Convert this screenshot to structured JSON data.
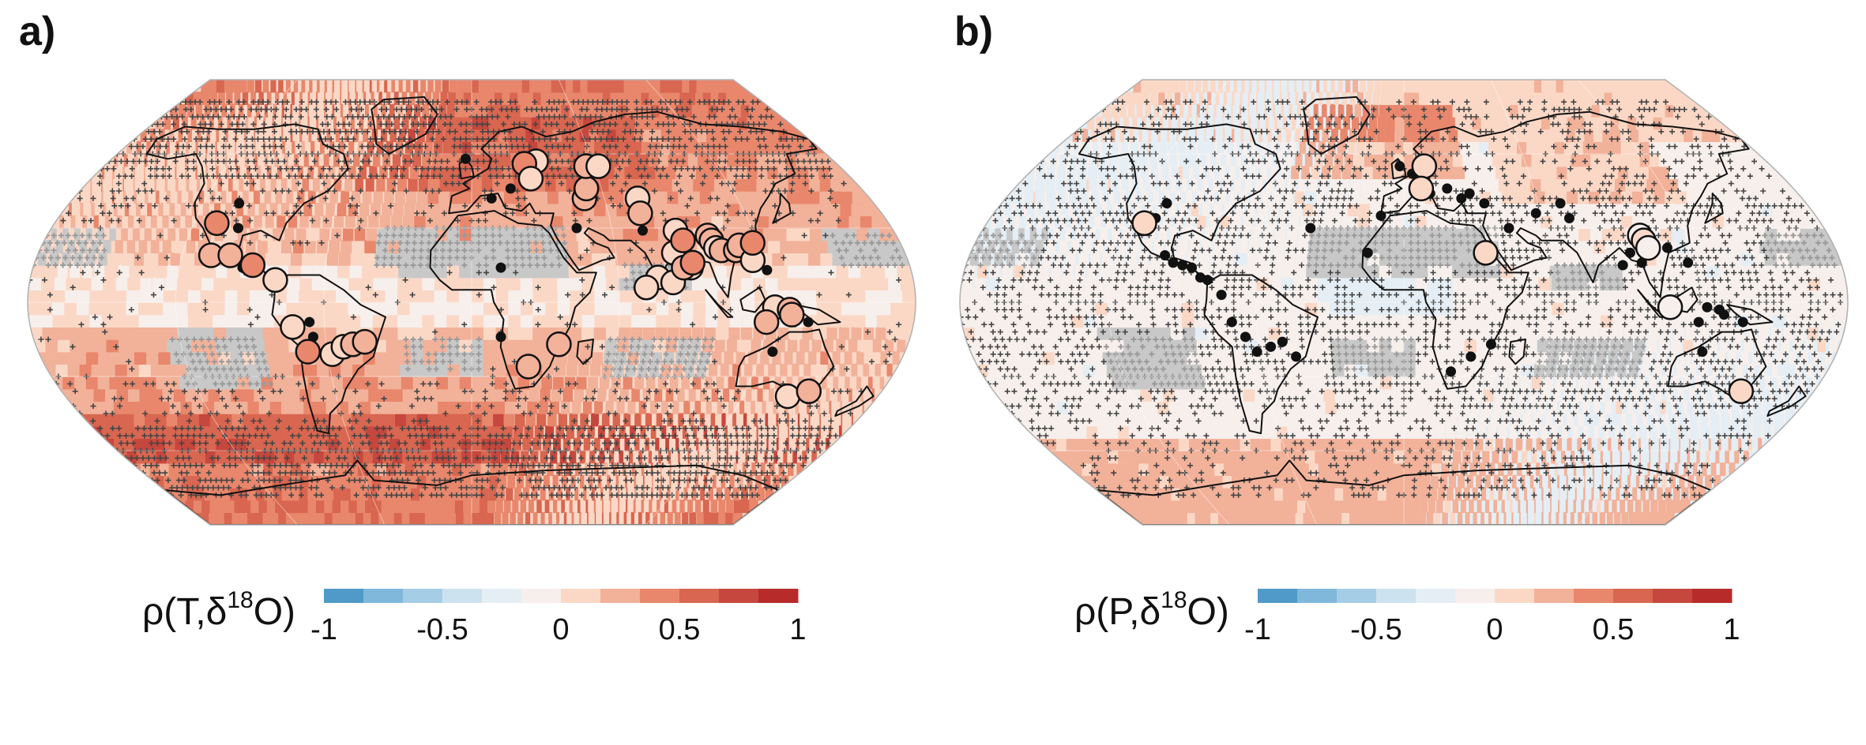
{
  "panels": [
    {
      "label": "a)",
      "colorbar_prefix": "ρ(T,δ",
      "colorbar_sup": "18",
      "colorbar_suffix": "O)",
      "theme": "warm",
      "stations_open": [
        [
          90,
          14
        ],
        [
          76,
          10
        ],
        [
          82,
          8
        ],
        [
          71,
          6
        ],
        [
          84,
          20
        ],
        [
          87,
          14
        ],
        [
          91,
          16
        ],
        [
          32,
          57
        ],
        [
          26,
          56
        ],
        [
          28,
          50
        ],
        [
          51,
          42
        ],
        [
          53,
          46
        ],
        [
          56,
          55
        ],
        [
          62,
          55
        ],
        [
          75,
          42
        ],
        [
          74,
          36
        ],
        [
          87,
          29
        ],
        [
          89,
          25
        ],
        [
          100,
          27
        ],
        [
          101,
          25
        ],
        [
          102,
          22
        ],
        [
          104,
          21
        ],
        [
          110,
          21
        ],
        [
          112,
          23
        ],
        [
          116,
          17
        ],
        [
          118,
          24
        ],
        [
          123,
          -2
        ],
        [
          129,
          -3
        ],
        [
          130,
          -5
        ],
        [
          120,
          -8
        ],
        [
          140,
          -38
        ],
        [
          148,
          -36
        ],
        [
          24,
          -26
        ],
        [
          36,
          -17
        ],
        [
          -73,
          -10
        ],
        [
          -68,
          -20
        ],
        [
          -58,
          -21
        ],
        [
          -53,
          -18
        ],
        [
          -49,
          -17
        ],
        [
          -44,
          -16
        ],
        [
          -110,
          32
        ],
        [
          -108,
          19
        ],
        [
          -100,
          19
        ],
        [
          -90,
          15
        ],
        [
          -80,
          9
        ]
      ],
      "stations_dark": [
        [
          -104,
          40
        ],
        [
          -100,
          30
        ],
        [
          -94,
          14
        ],
        [
          -65,
          -14
        ],
        [
          9,
          42
        ],
        [
          18,
          46
        ],
        [
          12,
          14
        ],
        [
          45,
          30
        ],
        [
          73,
          29
        ],
        [
          82,
          22
        ],
        [
          121,
          13
        ],
        [
          125,
          -20
        ],
        [
          137,
          -8
        ],
        [
          12,
          -14
        ],
        [
          -66,
          -8
        ],
        [
          -3,
          58
        ]
      ]
    },
    {
      "label": "b)",
      "colorbar_prefix": "ρ(P,δ",
      "colorbar_sup": "18",
      "colorbar_suffix": "O)",
      "theme": "cool",
      "stations_open": [
        [
          -112,
          32
        ],
        [
          10,
          55
        ],
        [
          8,
          46
        ],
        [
          34,
          20
        ],
        [
          100,
          27
        ],
        [
          101,
          25
        ],
        [
          102,
          22
        ],
        [
          108,
          -2
        ],
        [
          148,
          -36
        ]
      ],
      "stations_dark": [
        [
          -106,
          40
        ],
        [
          -108,
          34
        ],
        [
          -99,
          19
        ],
        [
          -95,
          16
        ],
        [
          -91,
          15
        ],
        [
          -87,
          14
        ],
        [
          -83,
          10
        ],
        [
          -80,
          9
        ],
        [
          -74,
          3
        ],
        [
          -70,
          -8
        ],
        [
          -65,
          -14
        ],
        [
          -61,
          -20
        ],
        [
          -55,
          -18
        ],
        [
          -50,
          -16
        ],
        [
          -45,
          -22
        ],
        [
          -2,
          55
        ],
        [
          4,
          52
        ],
        [
          10,
          50
        ],
        [
          12,
          44
        ],
        [
          20,
          46
        ],
        [
          26,
          42
        ],
        [
          30,
          44
        ],
        [
          36,
          40
        ],
        [
          45,
          30
        ],
        [
          58,
          36
        ],
        [
          70,
          40
        ],
        [
          72,
          34
        ],
        [
          90,
          15
        ],
        [
          94,
          20
        ],
        [
          98,
          16
        ],
        [
          110,
          22
        ],
        [
          117,
          16
        ],
        [
          123,
          -2
        ],
        [
          128,
          -3
        ],
        [
          130,
          -5
        ],
        [
          138,
          -8
        ],
        [
          120,
          -8
        ],
        [
          28,
          -22
        ],
        [
          20,
          -28
        ],
        [
          36,
          -17
        ],
        [
          -15,
          20
        ],
        [
          -40,
          30
        ],
        [
          -10,
          35
        ],
        [
          124,
          -20
        ]
      ]
    }
  ],
  "colorbar": {
    "colors": [
      "#4f9ac8",
      "#80b8db",
      "#a6cde6",
      "#cde2ef",
      "#e4eef4",
      "#f6efec",
      "#fbd8c6",
      "#f2b199",
      "#e8876c",
      "#d86650",
      "#c6473d",
      "#b72b2b"
    ],
    "tick_labels": [
      "-1",
      "-0.5",
      "0",
      "0.5",
      "1"
    ]
  }
}
